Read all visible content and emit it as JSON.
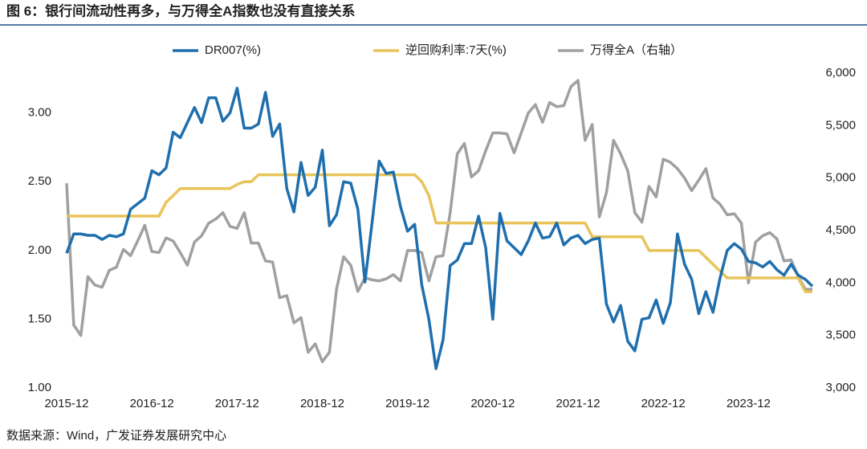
{
  "chart_data": {
    "type": "line",
    "title": "图 6：银行间流动性再多，与万得全A指数也没有直接关系",
    "source": "数据来源：Wind，广发证券发展研究中心",
    "categories": [
      "2015-12",
      null,
      null,
      null,
      null,
      null,
      null,
      null,
      null,
      null,
      null,
      null,
      "2016-12",
      null,
      null,
      null,
      null,
      null,
      null,
      null,
      null,
      null,
      null,
      null,
      "2017-12",
      null,
      null,
      null,
      null,
      null,
      null,
      null,
      null,
      null,
      null,
      null,
      "2018-12",
      null,
      null,
      null,
      null,
      null,
      null,
      null,
      null,
      null,
      null,
      null,
      "2019-12",
      null,
      null,
      null,
      null,
      null,
      null,
      null,
      null,
      null,
      null,
      null,
      "2020-12",
      null,
      null,
      null,
      null,
      null,
      null,
      null,
      null,
      null,
      null,
      null,
      "2021-12",
      null,
      null,
      null,
      null,
      null,
      null,
      null,
      null,
      null,
      null,
      null,
      "2022-12",
      null,
      null,
      null,
      null,
      null,
      null,
      null,
      null,
      null,
      null,
      null,
      "2023-12",
      null,
      null,
      null,
      null,
      null,
      null,
      null,
      null,
      null
    ],
    "series": [
      {
        "name": "DR007(%)",
        "color": "#1f6fae",
        "values": [
          1.98,
          2.12,
          2.12,
          2.11,
          2.11,
          2.08,
          2.11,
          2.1,
          2.12,
          2.3,
          2.34,
          2.38,
          2.58,
          2.55,
          2.6,
          2.86,
          2.82,
          2.93,
          3.04,
          2.93,
          3.11,
          3.11,
          2.94,
          3.0,
          3.18,
          2.89,
          2.89,
          2.92,
          3.15,
          2.83,
          2.92,
          2.45,
          2.28,
          2.64,
          2.4,
          2.46,
          2.73,
          2.18,
          2.26,
          2.5,
          2.49,
          2.3,
          1.77,
          2.2,
          2.65,
          2.56,
          2.57,
          2.32,
          2.14,
          2.19,
          1.75,
          1.5,
          1.14,
          1.35,
          1.89,
          1.93,
          2.05,
          2.05,
          2.25,
          2.02,
          1.5,
          2.27,
          2.07,
          2.02,
          1.97,
          2.07,
          2.2,
          2.09,
          2.1,
          2.2,
          2.04,
          2.09,
          2.11,
          2.05,
          2.08,
          2.09,
          1.61,
          1.48,
          1.6,
          1.34,
          1.27,
          1.5,
          1.51,
          1.64,
          1.47,
          1.62,
          2.12,
          1.9,
          1.79,
          1.54,
          1.7,
          1.55,
          1.8,
          2.0,
          2.05,
          2.01,
          1.92,
          1.91,
          1.88,
          1.92,
          1.86,
          1.82,
          1.9,
          1.82,
          1.79,
          1.74
        ]
      },
      {
        "name": "逆回购利率:7天(%)",
        "color": "#e8c45a",
        "values": [
          2.25,
          2.25,
          2.25,
          2.25,
          2.25,
          2.25,
          2.25,
          2.25,
          2.25,
          2.25,
          2.25,
          2.25,
          2.25,
          2.25,
          2.35,
          2.4,
          2.45,
          2.45,
          2.45,
          2.45,
          2.45,
          2.45,
          2.45,
          2.45,
          2.48,
          2.5,
          2.5,
          2.55,
          2.55,
          2.55,
          2.55,
          2.55,
          2.55,
          2.55,
          2.55,
          2.55,
          2.55,
          2.55,
          2.55,
          2.55,
          2.55,
          2.55,
          2.55,
          2.55,
          2.55,
          2.55,
          2.55,
          2.55,
          2.55,
          2.55,
          2.5,
          2.4,
          2.2,
          2.2,
          2.2,
          2.2,
          2.2,
          2.2,
          2.2,
          2.2,
          2.2,
          2.2,
          2.2,
          2.2,
          2.2,
          2.2,
          2.2,
          2.2,
          2.2,
          2.2,
          2.2,
          2.2,
          2.2,
          2.2,
          2.1,
          2.1,
          2.1,
          2.1,
          2.1,
          2.1,
          2.1,
          2.1,
          2.0,
          2.0,
          2.0,
          2.0,
          2.0,
          2.0,
          2.0,
          2.0,
          1.95,
          1.9,
          1.85,
          1.8,
          1.8,
          1.8,
          1.8,
          1.8,
          1.8,
          1.8,
          1.8,
          1.8,
          1.8,
          1.8,
          1.7,
          1.7
        ]
      },
      {
        "name": "万得全A（右轴）",
        "color": "#a0a0a0",
        "axis": "y2",
        "values": [
          4950,
          3600,
          3500,
          4060,
          3980,
          3960,
          4120,
          4150,
          4320,
          4260,
          4400,
          4550,
          4300,
          4290,
          4430,
          4400,
          4290,
          4170,
          4390,
          4450,
          4570,
          4610,
          4670,
          4540,
          4520,
          4670,
          4380,
          4380,
          4210,
          4200,
          3860,
          3880,
          3620,
          3670,
          3340,
          3420,
          3250,
          3340,
          3940,
          4250,
          4170,
          3920,
          4050,
          4030,
          4020,
          4040,
          4080,
          4020,
          4310,
          4310,
          4290,
          4020,
          4250,
          4260,
          4670,
          5230,
          5330,
          5010,
          5070,
          5260,
          5430,
          5430,
          5420,
          5240,
          5430,
          5620,
          5700,
          5530,
          5720,
          5680,
          5690,
          5870,
          5930,
          5360,
          5510,
          4630,
          4860,
          5360,
          5230,
          5070,
          4670,
          4580,
          4920,
          4820,
          5180,
          5150,
          5090,
          5000,
          4880,
          4980,
          5090,
          4810,
          4750,
          4650,
          4660,
          4570,
          4000,
          4390,
          4450,
          4480,
          4420,
          4210,
          4220,
          4060,
          3940,
          3940
        ]
      }
    ],
    "ylim": [
      1,
      3.29
    ],
    "yticks": [
      {
        "value": 1,
        "label": "1.00"
      },
      {
        "value": 1.5,
        "label": "1.50"
      },
      {
        "value": 2,
        "label": "2.00"
      },
      {
        "value": 2.5,
        "label": "2.50"
      },
      {
        "value": 3,
        "label": "3.00"
      }
    ],
    "y2lim": [
      3000,
      6000
    ],
    "y2ticks": [
      {
        "value": 3000,
        "label": "3,000"
      },
      {
        "value": 3500,
        "label": "3,500"
      },
      {
        "value": 4000,
        "label": "4,000"
      },
      {
        "value": 4500,
        "label": "4,500"
      },
      {
        "value": 5000,
        "label": "5,000"
      },
      {
        "value": 5500,
        "label": "5,500"
      },
      {
        "value": 6000,
        "label": "6,000"
      }
    ],
    "grid": false,
    "legend": "top"
  }
}
